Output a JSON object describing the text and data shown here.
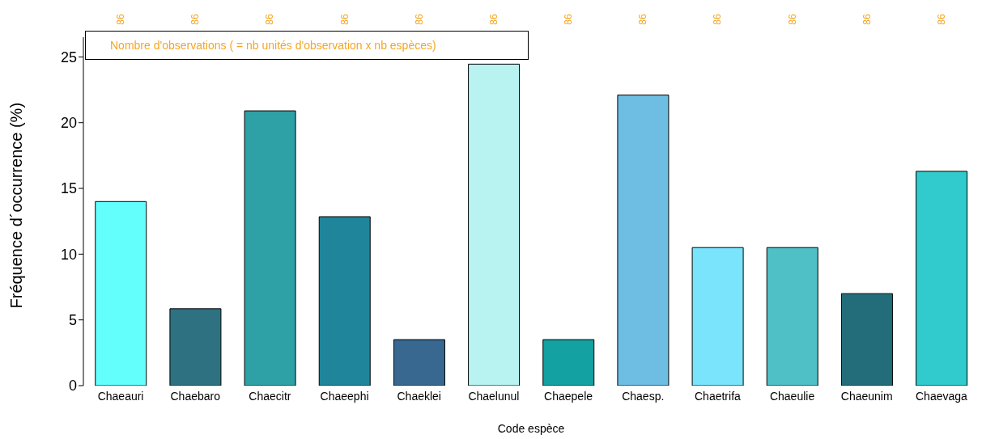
{
  "chart_data": {
    "type": "bar",
    "xlabel": "Code espèce",
    "ylabel": "Fréquence d´occurrence (%)",
    "categories": [
      "Chaeauri",
      "Chaebaro",
      "Chaecitr",
      "Chaeephi",
      "Chaeklei",
      "Chaelunul",
      "Chaepele",
      "Chaesp.",
      "Chaetrifa",
      "Chaeulie",
      "Chaeunim",
      "Chaevaga"
    ],
    "values": [
      14.0,
      5.85,
      20.9,
      12.85,
      3.5,
      24.45,
      3.5,
      22.1,
      10.5,
      10.5,
      7.0,
      16.3
    ],
    "colors": [
      "#62fffd",
      "#2e7282",
      "#2ea1a6",
      "#1e859b",
      "#386890",
      "#b8f3f2",
      "#13a1a1",
      "#6ebde2",
      "#7ae4fc",
      "#4fc0c6",
      "#236d7a",
      "#31cacd"
    ],
    "ylim": [
      0,
      26.5
    ],
    "yticks": [
      0,
      5,
      10,
      15,
      20,
      25
    ],
    "grid": false,
    "legend": false,
    "annotations": [
      "Nombre d'observations ( = nb unités d'observation x nb espèces)",
      "86",
      "86",
      "86",
      "86",
      "86",
      "86",
      "86",
      "86",
      "86",
      "86",
      "86",
      "86"
    ]
  }
}
